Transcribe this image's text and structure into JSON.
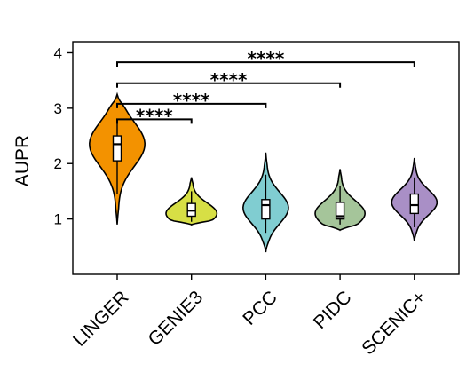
{
  "chart_data": {
    "type": "violin",
    "ylabel": "AUPR",
    "xlabel": "",
    "ylim": [
      0,
      4.2
    ],
    "yticks": [
      1,
      2,
      3,
      4
    ],
    "grid": false,
    "categories": [
      "LINGER",
      "GENIE3",
      "PCC",
      "PIDC",
      "SCENIC+"
    ],
    "colors": [
      "#f39200",
      "#d7df45",
      "#80cdd1",
      "#a5c59a",
      "#a98fc6"
    ],
    "violins": [
      {
        "name": "LINGER",
        "min": 0.9,
        "max": 3.25,
        "q1": 2.05,
        "median": 2.35,
        "q3": 2.5,
        "whisker_low": 1.45,
        "whisker_high": 2.75,
        "mode": 2.35,
        "width": 1.0
      },
      {
        "name": "GENIE3",
        "min": 0.9,
        "max": 1.75,
        "q1": 1.05,
        "median": 1.15,
        "q3": 1.28,
        "whisker_low": 0.95,
        "whisker_high": 1.5,
        "mode": 1.1,
        "width": 0.92
      },
      {
        "name": "PCC",
        "min": 0.4,
        "max": 2.2,
        "q1": 1.0,
        "median": 1.25,
        "q3": 1.35,
        "whisker_low": 0.75,
        "whisker_high": 1.8,
        "mode": 1.2,
        "width": 0.82
      },
      {
        "name": "PIDC",
        "min": 0.8,
        "max": 1.9,
        "q1": 1.0,
        "median": 1.05,
        "q3": 1.3,
        "whisker_low": 0.9,
        "whisker_high": 1.6,
        "mode": 1.1,
        "width": 0.9
      },
      {
        "name": "SCENIC+",
        "min": 0.6,
        "max": 2.1,
        "q1": 1.1,
        "median": 1.25,
        "q3": 1.45,
        "whisker_low": 0.85,
        "whisker_high": 1.75,
        "mode": 1.3,
        "width": 0.82
      }
    ],
    "comparisons": [
      {
        "from": "LINGER",
        "to": "GENIE3",
        "y": 2.8,
        "label": "****"
      },
      {
        "from": "LINGER",
        "to": "PCC",
        "y": 3.08,
        "label": "****"
      },
      {
        "from": "LINGER",
        "to": "PIDC",
        "y": 3.45,
        "label": "****"
      },
      {
        "from": "LINGER",
        "to": "SCENIC+",
        "y": 3.83,
        "label": "****"
      }
    ]
  }
}
